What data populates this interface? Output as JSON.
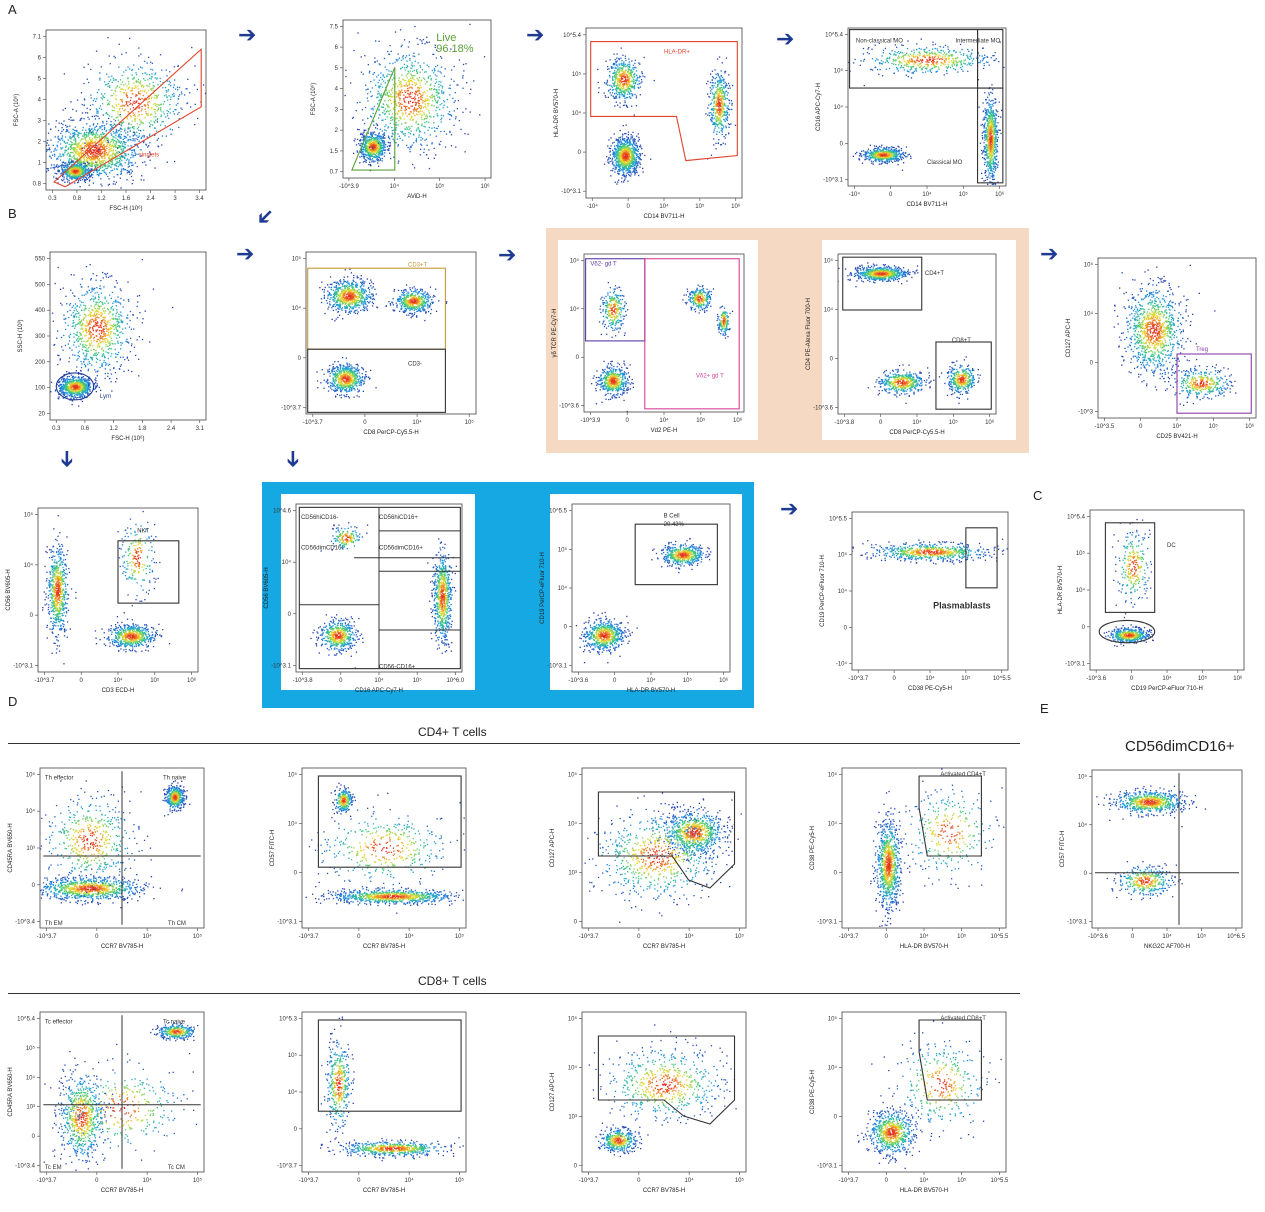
{
  "sections": {
    "A": "A",
    "B": "B",
    "C": "C",
    "D": "D",
    "E": "E"
  },
  "headers": {
    "cd4": "CD4+ T cells",
    "cd8": "CD8+ T cells",
    "nk": "CD56dimCD16+"
  },
  "colors": {
    "arrow": "#1f3a93",
    "peach_bg": "#f6d9c2",
    "blue_bg": "#16a8e2",
    "gate_red": "#e0452c",
    "gate_dark": "#333333",
    "gate_gold": "#c89a3a",
    "gate_magenta": "#d9409a",
    "gate_purple": "#8a3da8",
    "gate_green": "#5aa03a"
  },
  "plots": [
    {
      "id": "p1",
      "xlabel": "FSC-H (10⁶)",
      "ylabel": "FSC-A (10⁶)",
      "xticks": [
        "0.3",
        "0.8",
        "1.2",
        "1.6",
        "2.4",
        "3",
        "3.4"
      ],
      "yticks": [
        "7.1",
        "6",
        "5",
        "4",
        "3",
        "2",
        "1",
        "0.8"
      ],
      "gates": [
        {
          "label": "singlets",
          "color": "#e0452c"
        }
      ]
    },
    {
      "id": "p2",
      "xlabel": "AViD-H",
      "ylabel": "FSC-A (10⁶)",
      "xticks": [
        "-10^3.9",
        "10⁴",
        "10⁵",
        "10⁶"
      ],
      "yticks": [
        "7.5",
        "6",
        "5",
        "4",
        "3",
        "2",
        "1.5",
        "0.7"
      ],
      "gates": [
        {
          "label": "Live",
          "color": "#5aa03a"
        },
        {
          "label": "96.18%",
          "color": "#5aa03a"
        }
      ]
    },
    {
      "id": "p3",
      "xlabel": "CD14 BV711-H",
      "ylabel": "HLA-DR BV570-H",
      "xticks": [
        "-10⁴",
        "0",
        "10⁴",
        "10⁵",
        "10⁶"
      ],
      "yticks": [
        "10^5.4",
        "10⁵",
        "10⁴",
        "0",
        "-10^3.1"
      ],
      "gates": [
        {
          "label": "HLA-DR+",
          "color": "#e0452c"
        }
      ]
    },
    {
      "id": "p4",
      "xlabel": "CD14 BV711-H",
      "ylabel": "CD16 APC-Cy7-H",
      "xticks": [
        "-10⁴",
        "0",
        "10⁴",
        "10⁵",
        "10⁶"
      ],
      "yticks": [
        "10^5.4",
        "10⁵",
        "10⁴",
        "0",
        "-10^3.1"
      ],
      "gates": [
        {
          "label": "Non-classical MO",
          "color": "#333333"
        },
        {
          "label": "Intermediate MO",
          "color": "#333333"
        },
        {
          "label": "Classical MO",
          "color": "#333333"
        }
      ]
    },
    {
      "id": "p5",
      "xlabel": "FSC-H (10⁶)",
      "ylabel": "SSC-H (10³)",
      "xticks": [
        "0.3",
        "0.6",
        "1.2",
        "1.8",
        "2.4",
        "3.1"
      ],
      "yticks": [
        "550",
        "500",
        "400",
        "300",
        "200",
        "100",
        "20"
      ],
      "gates": [
        {
          "label": "Lym",
          "color": "#1f3a93"
        }
      ]
    },
    {
      "id": "p6",
      "xlabel": "CD8 PerCP-Cy5.5-H",
      "ylabel": "",
      "xticks": [
        "-10^3.7",
        "0",
        "10⁴",
        "10⁵"
      ],
      "yticks": [
        "10⁵",
        "10⁴",
        "0",
        "-10^3.7"
      ],
      "gates": [
        {
          "label": "CD3+T",
          "color": "#c89a3a"
        },
        {
          "label": "CD3-",
          "color": "#333333"
        }
      ]
    },
    {
      "id": "p7",
      "xlabel": "Vd2 PE-H",
      "ylabel": "γδ TCR PE-Cy7-H",
      "xticks": [
        "-10^3.9",
        "0",
        "10⁴",
        "10⁵",
        "10⁶"
      ],
      "yticks": [
        "10⁵",
        "10⁴",
        "0",
        "-10^3.6"
      ],
      "gates": [
        {
          "label": "Vδ2- gd T",
          "color": "#5a3aa8"
        },
        {
          "label": "Vδ2+ gd T",
          "color": "#d9409a"
        }
      ]
    },
    {
      "id": "p8",
      "xlabel": "CD8 PerCP-Cy5.5-H",
      "ylabel": "CD4 PE-Alexa Fluor 700-H",
      "xticks": [
        "-10^3.8",
        "0",
        "10⁴",
        "10⁵",
        "10⁶"
      ],
      "yticks": [
        "10⁵",
        "10⁴",
        "0",
        "-10^3.6"
      ],
      "gates": [
        {
          "label": "CD4+T",
          "color": "#333333"
        },
        {
          "label": "CD8+T",
          "color": "#333333"
        }
      ]
    },
    {
      "id": "p9",
      "xlabel": "CD25 BV421-H",
      "ylabel": "CD127 APC-H",
      "xticks": [
        "-10^3.5",
        "0",
        "10⁴",
        "10⁵",
        "10⁶"
      ],
      "yticks": [
        "10⁵",
        "10⁴",
        "0",
        "-10^3"
      ],
      "gates": [
        {
          "label": "Treg",
          "color": "#8a3da8"
        }
      ]
    },
    {
      "id": "p10",
      "xlabel": "CD3 ECD-H",
      "ylabel": "CD56 BV605-H",
      "xticks": [
        "-10^3.7",
        "0",
        "10⁴",
        "10⁵",
        "10⁶"
      ],
      "yticks": [
        "10⁵",
        "10⁴",
        "0",
        "-10^3.1"
      ],
      "gates": [
        {
          "label": "NKT",
          "color": "#333333"
        }
      ]
    },
    {
      "id": "p11",
      "xlabel": "CD16 APC-Cy7-H",
      "ylabel": "CD56 BV605-H",
      "xticks": [
        "-10^3.8",
        "0",
        "10⁴",
        "10⁵",
        "10^6.0"
      ],
      "yticks": [
        "10^4.6",
        "10⁴",
        "0",
        "-10^3.1"
      ],
      "gates": [
        {
          "label": "CD56hiCD16-",
          "color": "#333333"
        },
        {
          "label": "CD56hiCD16+",
          "color": "#333333"
        },
        {
          "label": "CD56dimCD16-",
          "color": "#333333"
        },
        {
          "label": "CD56dimCD16+",
          "color": "#333333"
        },
        {
          "label": "CD56-CD16+",
          "color": "#333333"
        }
      ]
    },
    {
      "id": "p12",
      "xlabel": "HLA-DR BV570-H",
      "ylabel": "CD19 PerCP-eFluor 710-H",
      "xticks": [
        "-10^3.6",
        "0",
        "10⁴",
        "10⁵",
        "10⁶"
      ],
      "yticks": [
        "10^5.5",
        "10⁵",
        "10⁴",
        "0",
        "-10^3.1"
      ],
      "gates": [
        {
          "label": "B Cell",
          "color": "#333333"
        },
        {
          "label": "20.43%",
          "color": "#333333"
        }
      ]
    },
    {
      "id": "p13",
      "xlabel": "CD38 PE-Cy5-H",
      "ylabel": "CD19 PerCP-eFluor 710-H",
      "xticks": [
        "-10^3.7",
        "0",
        "10⁴",
        "10⁵",
        "10^5.5"
      ],
      "yticks": [
        "10^5.5",
        "10⁵",
        "10⁴",
        "0",
        "-10⁴"
      ],
      "gates": [
        {
          "label": "Plasmablasts",
          "color": "#333333"
        }
      ]
    },
    {
      "id": "p14",
      "xlabel": "CD19 PerCP-eFluor 710-H",
      "ylabel": "HLA-DR BV570-H",
      "xticks": [
        "-10^3.6",
        "0",
        "10⁴",
        "10⁵",
        "10⁶"
      ],
      "yticks": [
        "10^5.4",
        "10⁵",
        "10⁴",
        "0",
        "-10^3.1"
      ],
      "gates": [
        {
          "label": "DC",
          "color": "#333333"
        }
      ]
    },
    {
      "id": "p15",
      "xlabel": "CCR7 BV785-H",
      "ylabel": "CD45RA BV650-H",
      "xticks": [
        "-10^3.7",
        "0",
        "10⁴",
        "10⁵"
      ],
      "yticks": [
        "10⁵",
        "10⁴",
        "10³",
        "0",
        "-10^3.4"
      ],
      "gates": [
        {
          "label": "Th effector",
          "color": "#333333"
        },
        {
          "label": "Th naive",
          "color": "#333333"
        },
        {
          "label": "Th EM",
          "color": "#333333"
        },
        {
          "label": "Th CM",
          "color": "#333333"
        }
      ]
    },
    {
      "id": "p16",
      "xlabel": "CCR7 BV785-H",
      "ylabel": "CD57 FITC-H",
      "xticks": [
        "-10^3.7",
        "0",
        "10⁴",
        "10⁵"
      ],
      "yticks": [
        "10⁵",
        "10⁴",
        "0",
        "-10^3.1"
      ],
      "gates": []
    },
    {
      "id": "p17",
      "xlabel": "CCR7 BV785-H",
      "ylabel": "CD127 APC-H",
      "xticks": [
        "-10^3.7",
        "0",
        "10⁴",
        "10⁵"
      ],
      "yticks": [
        "10⁵",
        "10⁴",
        "10³",
        "0"
      ],
      "gates": []
    },
    {
      "id": "p18",
      "xlabel": "HLA-DR BV570-H",
      "ylabel": "CD38 PE-Cy5-H",
      "xticks": [
        "-10^3.7",
        "0",
        "10⁴",
        "10⁵",
        "10^5.5"
      ],
      "yticks": [
        "10⁵",
        "10⁴",
        "0",
        "-10^3.1"
      ],
      "gates": [
        {
          "label": "Activated CD4+T",
          "color": "#333333"
        }
      ]
    },
    {
      "id": "p19",
      "xlabel": "NKG2C AF700-H",
      "ylabel": "CD57 FITC-H",
      "xticks": [
        "-10^3.6",
        "0",
        "10⁴",
        "10⁵",
        "10^6.5"
      ],
      "yticks": [
        "10⁵",
        "10⁴",
        "0",
        "-10^3.1"
      ],
      "gates": []
    },
    {
      "id": "p20",
      "xlabel": "CCR7 BV785-H",
      "ylabel": "CD45RA BV650-H",
      "xticks": [
        "-10^3.7",
        "0",
        "10⁴",
        "10⁵"
      ],
      "yticks": [
        "10^5.4",
        "10⁵",
        "10⁴",
        "10³",
        "0",
        "-10^3.4"
      ],
      "gates": [
        {
          "label": "Tc effector",
          "color": "#333333"
        },
        {
          "label": "Tc naive",
          "color": "#333333"
        },
        {
          "label": "Tc EM",
          "color": "#333333"
        },
        {
          "label": "Tc CM",
          "color": "#333333"
        }
      ]
    },
    {
      "id": "p21",
      "xlabel": "CCR7 BV785-H",
      "ylabel": "",
      "xticks": [
        "-10^3.7",
        "0",
        "10⁴",
        "10⁵"
      ],
      "yticks": [
        "10^5.3",
        "10⁵",
        "10⁴",
        "0",
        "-10^3.7"
      ],
      "gates": []
    },
    {
      "id": "p22",
      "xlabel": "CCR7 BV785-H",
      "ylabel": "CD127 APC-H",
      "xticks": [
        "-10^3.7",
        "0",
        "10⁴",
        "10⁵"
      ],
      "yticks": [
        "10⁵",
        "10⁴",
        "10³",
        "0"
      ],
      "gates": []
    },
    {
      "id": "p23",
      "xlabel": "HLA-DR BV570-H",
      "ylabel": "CD38 PE-Cy5-H",
      "xticks": [
        "-10^3.7",
        "0",
        "10⁴",
        "10⁵",
        "10^5.5"
      ],
      "yticks": [
        "10⁵",
        "10⁴",
        "0",
        "-10^3.1"
      ],
      "gates": [
        {
          "label": "Activated CD8+T",
          "color": "#333333"
        }
      ]
    }
  ]
}
